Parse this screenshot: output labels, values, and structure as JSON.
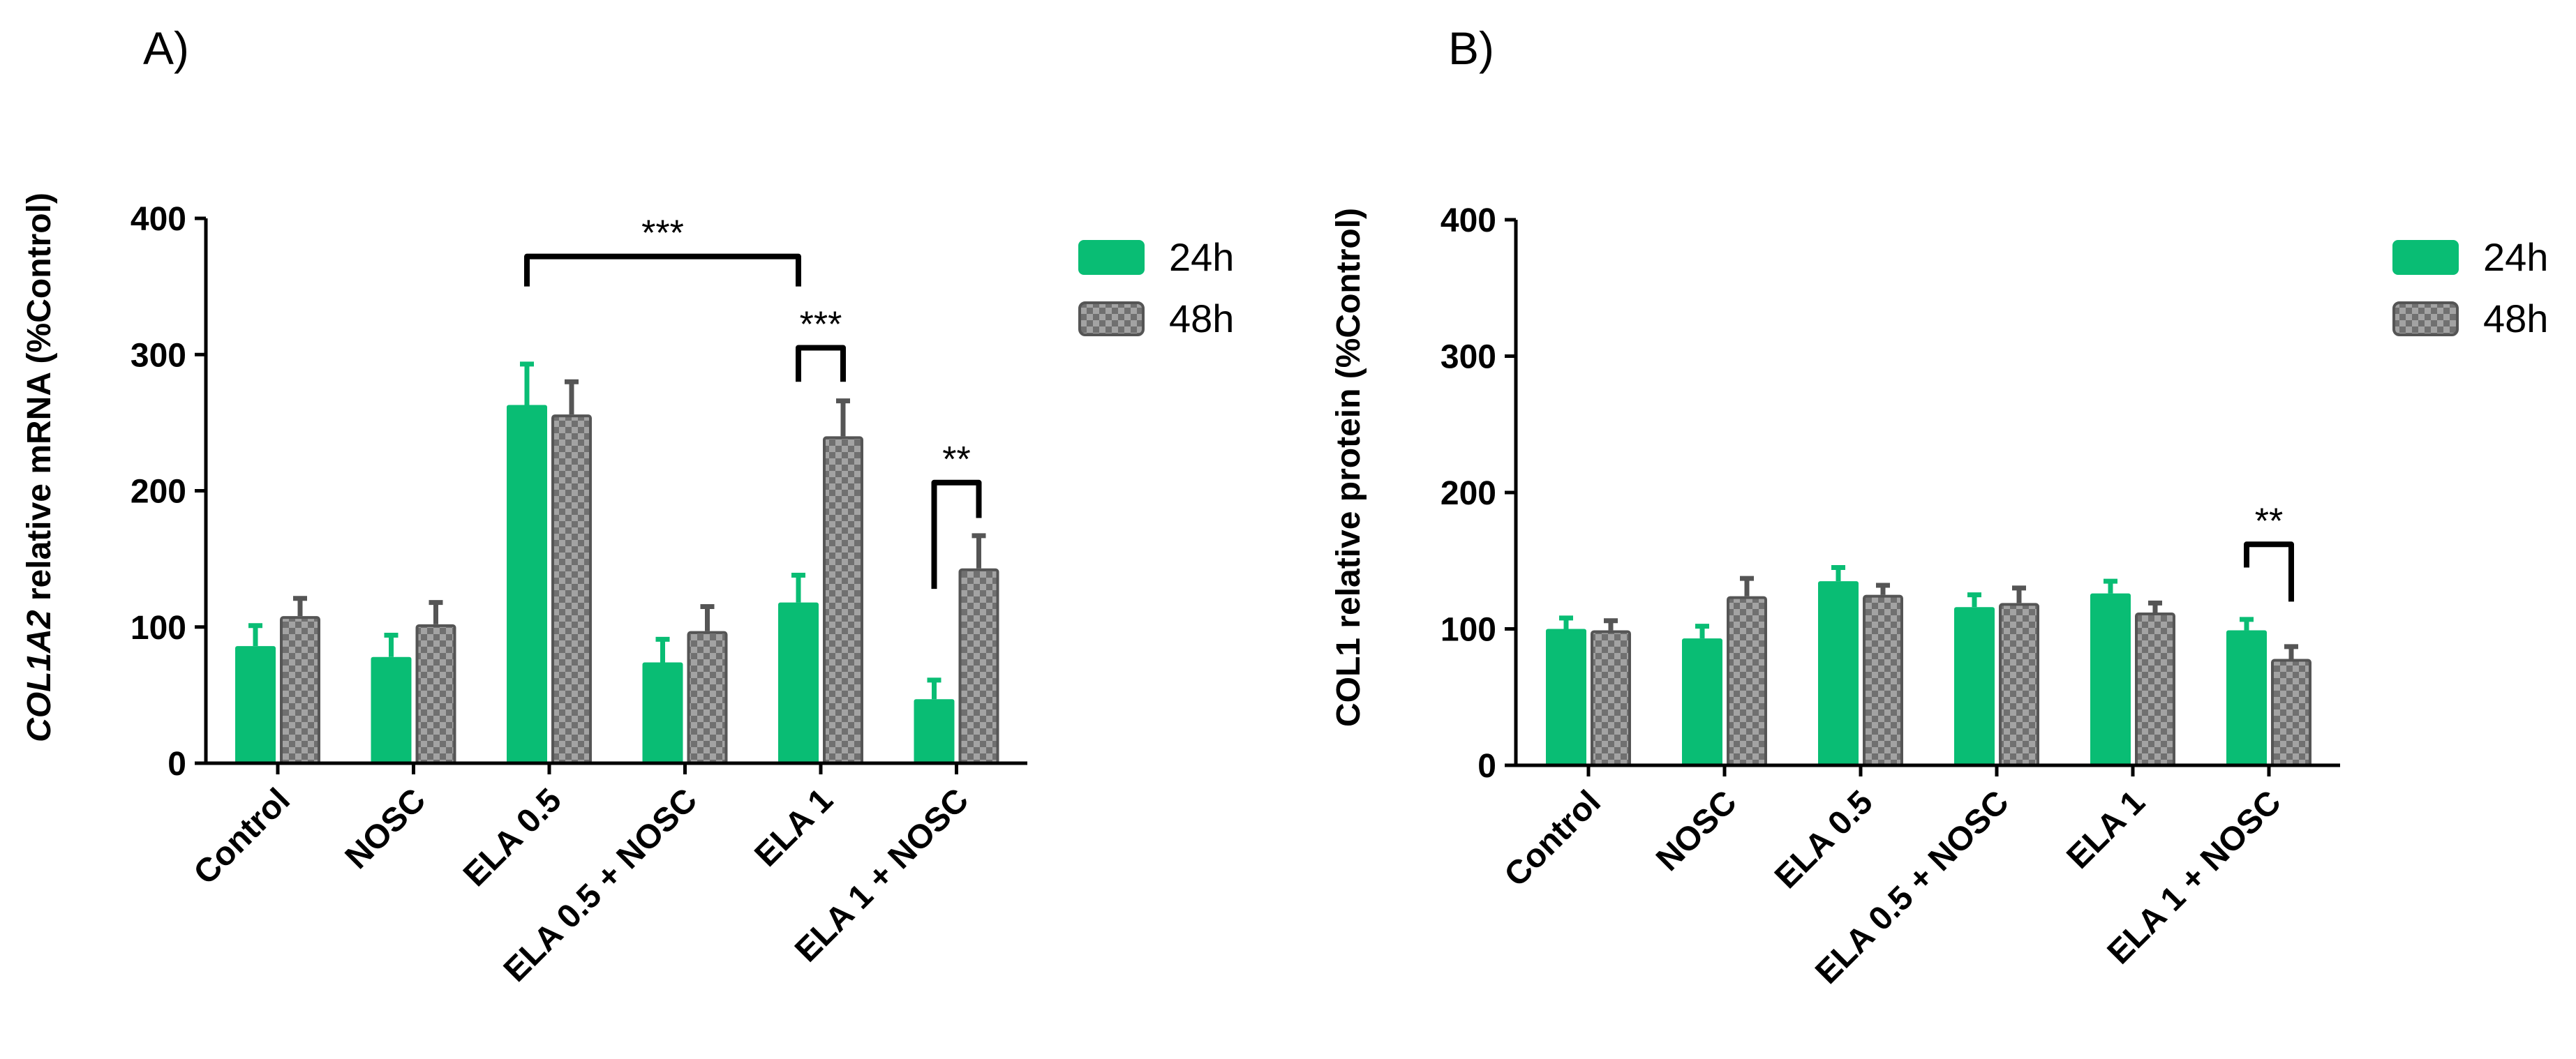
{
  "panels": [
    {
      "label": "A)"
    },
    {
      "label": "B)"
    }
  ],
  "colors": {
    "series_24h": "#09bd74",
    "series_48h_fill": "#a3a3a3",
    "series_48h_check": "#707070",
    "series_48h_edge": "#555555",
    "axis": "#000000"
  },
  "chart_data": [
    {
      "type": "bar",
      "panel": "A)",
      "title": "",
      "ylabel_italic": "COL1A2",
      "ylabel_rest": " relative mRNA (%Control)",
      "xlabel": "",
      "ylim": [
        0,
        400
      ],
      "yticks": [
        "0",
        "100",
        "200",
        "300",
        "400"
      ],
      "categories": [
        "Control",
        "NOSC",
        "ELA 0.5",
        "ELA 0.5 + NOSC",
        "ELA 1",
        "ELA 1 + NOSC"
      ],
      "series": [
        {
          "name": "24h",
          "values": [
            86,
            78,
            263,
            74,
            118,
            47
          ],
          "errors": [
            15,
            16,
            30,
            17,
            20,
            14
          ]
        },
        {
          "name": "48h",
          "values": [
            108,
            102,
            256,
            97,
            240,
            143
          ],
          "errors": [
            13,
            16,
            24,
            18,
            26,
            24
          ]
        }
      ],
      "legend": [
        "24h",
        "48h"
      ],
      "legend_position": "top-right",
      "significance": [
        {
          "label": "***",
          "from": [
            2,
            0
          ],
          "to": [
            4,
            0
          ],
          "y": 372,
          "left_end": 350,
          "right_end": 350
        },
        {
          "label": "***",
          "from": [
            4,
            0
          ],
          "to": [
            4,
            1
          ],
          "y": 305,
          "left_end": 280,
          "right_end": 280
        },
        {
          "label": "**",
          "from": [
            5,
            0
          ],
          "to": [
            5,
            1
          ],
          "y": 206,
          "left_end": 128,
          "right_end": 180
        }
      ]
    },
    {
      "type": "bar",
      "panel": "B)",
      "title": "",
      "ylabel_italic": "",
      "ylabel_rest": "COL1 relative protein (%Control)",
      "xlabel": "",
      "ylim": [
        0,
        400
      ],
      "yticks": [
        "0",
        "100",
        "200",
        "300",
        "400"
      ],
      "categories": [
        "Control",
        "NOSC",
        "ELA 0.5",
        "ELA 0.5 + NOSC",
        "ELA 1",
        "ELA 1 + NOSC"
      ],
      "series": [
        {
          "name": "24h",
          "values": [
            100,
            93,
            135,
            116,
            126,
            99
          ],
          "errors": [
            8,
            9,
            10,
            9,
            9,
            8
          ]
        },
        {
          "name": "48h",
          "values": [
            99,
            124,
            125,
            119,
            112,
            78
          ],
          "errors": [
            7,
            13,
            7,
            11,
            7,
            9
          ]
        }
      ],
      "legend": [
        "24h",
        "48h"
      ],
      "legend_position": "top-right",
      "significance": [
        {
          "label": "**",
          "from": [
            5,
            0
          ],
          "to": [
            5,
            1
          ],
          "y": 162,
          "left_end": 145,
          "right_end": 120
        }
      ]
    }
  ]
}
